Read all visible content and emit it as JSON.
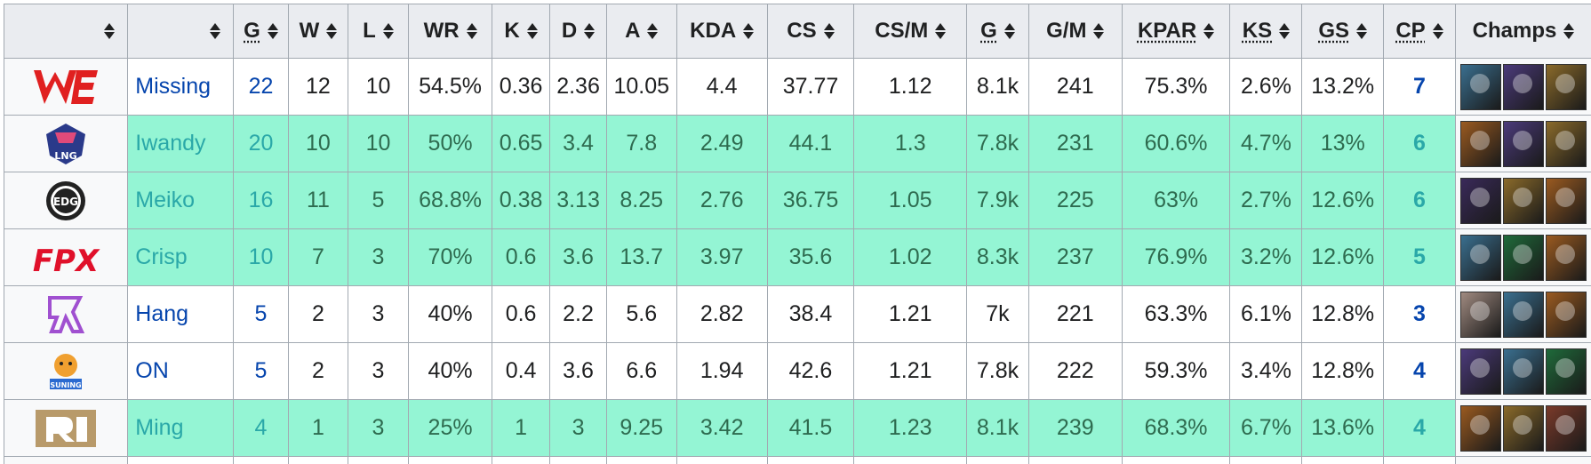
{
  "headers": [
    {
      "label": "",
      "abbr": false
    },
    {
      "label": "",
      "abbr": false
    },
    {
      "label": "G",
      "abbr": true
    },
    {
      "label": "W",
      "abbr": false
    },
    {
      "label": "L",
      "abbr": false
    },
    {
      "label": "WR",
      "abbr": false
    },
    {
      "label": "K",
      "abbr": false
    },
    {
      "label": "D",
      "abbr": false
    },
    {
      "label": "A",
      "abbr": false
    },
    {
      "label": "KDA",
      "abbr": false
    },
    {
      "label": "CS",
      "abbr": false
    },
    {
      "label": "CS/M",
      "abbr": false
    },
    {
      "label": "G",
      "abbr": true
    },
    {
      "label": "G/M",
      "abbr": false
    },
    {
      "label": "KPAR",
      "abbr": true
    },
    {
      "label": "KS",
      "abbr": true
    },
    {
      "label": "GS",
      "abbr": true
    },
    {
      "label": "CP",
      "abbr": true
    },
    {
      "label": "Champs",
      "abbr": false
    }
  ],
  "rows": [
    {
      "team_logo": "we-logo",
      "player": "Missing",
      "highlight": false,
      "games": "22",
      "w": "12",
      "l": "10",
      "wr": "54.5%",
      "k": "0.36",
      "d": "2.36",
      "a": "10.05",
      "kda": "4.4",
      "cs": "37.77",
      "csm": "1.12",
      "gold": "8.1k",
      "gm": "241",
      "kpar": "75.3%",
      "ks": "2.6%",
      "gs": "13.2%",
      "cp": "7",
      "champs": [
        {
          "icon": "champ-icon-1",
          "color": "#3a6f8f"
        },
        {
          "icon": "champ-icon-2",
          "color": "#4b3a7a"
        },
        {
          "icon": "champ-icon-3",
          "color": "#8a6a2a"
        }
      ]
    },
    {
      "team_logo": "lng-logo",
      "player": "Iwandy",
      "highlight": true,
      "games": "20",
      "w": "10",
      "l": "10",
      "wr": "50%",
      "k": "0.65",
      "d": "3.4",
      "a": "7.8",
      "kda": "2.49",
      "cs": "44.1",
      "csm": "1.3",
      "gold": "7.8k",
      "gm": "231",
      "kpar": "60.6%",
      "ks": "4.7%",
      "gs": "13%",
      "cp": "6",
      "champs": [
        {
          "icon": "champ-icon-4",
          "color": "#9a5a20"
        },
        {
          "icon": "champ-icon-2",
          "color": "#4b3a7a"
        },
        {
          "icon": "champ-icon-3",
          "color": "#8a6a2a"
        }
      ]
    },
    {
      "team_logo": "edg-logo",
      "player": "Meiko",
      "highlight": true,
      "games": "16",
      "w": "11",
      "l": "5",
      "wr": "68.8%",
      "k": "0.38",
      "d": "3.13",
      "a": "8.25",
      "kda": "2.76",
      "cs": "36.75",
      "csm": "1.05",
      "gold": "7.9k",
      "gm": "225",
      "kpar": "63%",
      "ks": "2.7%",
      "gs": "12.6%",
      "cp": "6",
      "champs": [
        {
          "icon": "champ-icon-5",
          "color": "#3a2a5a"
        },
        {
          "icon": "champ-icon-3",
          "color": "#8a6a2a"
        },
        {
          "icon": "champ-icon-4",
          "color": "#9a5a20"
        }
      ]
    },
    {
      "team_logo": "fpx-logo",
      "player": "Crisp",
      "highlight": true,
      "games": "10",
      "w": "7",
      "l": "3",
      "wr": "70%",
      "k": "0.6",
      "d": "3.6",
      "a": "13.7",
      "kda": "3.97",
      "cs": "35.6",
      "csm": "1.02",
      "gold": "8.3k",
      "gm": "237",
      "kpar": "76.9%",
      "ks": "3.2%",
      "gs": "12.6%",
      "cp": "5",
      "champs": [
        {
          "icon": "champ-icon-1",
          "color": "#3a6f8f"
        },
        {
          "icon": "champ-icon-6",
          "color": "#1f6a3a"
        },
        {
          "icon": "champ-icon-4",
          "color": "#9a5a20"
        }
      ]
    },
    {
      "team_logo": "rng-purple-logo",
      "player": "Hang",
      "highlight": false,
      "games": "5",
      "w": "2",
      "l": "3",
      "wr": "40%",
      "k": "0.6",
      "d": "2.2",
      "a": "5.6",
      "kda": "2.82",
      "cs": "38.4",
      "csm": "1.21",
      "gold": "7k",
      "gm": "221",
      "kpar": "63.3%",
      "ks": "6.1%",
      "gs": "12.8%",
      "cp": "3",
      "champs": [
        {
          "icon": "champ-icon-7",
          "color": "#a08a80"
        },
        {
          "icon": "champ-icon-1",
          "color": "#3a6f8f"
        },
        {
          "icon": "champ-icon-4",
          "color": "#9a5a20"
        }
      ]
    },
    {
      "team_logo": "suning-logo",
      "player": "ON",
      "highlight": false,
      "games": "5",
      "w": "2",
      "l": "3",
      "wr": "40%",
      "k": "0.4",
      "d": "3.6",
      "a": "6.6",
      "kda": "1.94",
      "cs": "42.6",
      "csm": "1.21",
      "gold": "7.8k",
      "gm": "222",
      "kpar": "59.3%",
      "ks": "3.4%",
      "gs": "12.8%",
      "cp": "4",
      "champs": [
        {
          "icon": "champ-icon-2",
          "color": "#4b3a7a"
        },
        {
          "icon": "champ-icon-1",
          "color": "#3a6f8f"
        },
        {
          "icon": "champ-icon-6",
          "color": "#1f6a3a"
        }
      ]
    },
    {
      "team_logo": "rng-logo",
      "player": "Ming",
      "highlight": true,
      "games": "4",
      "w": "1",
      "l": "3",
      "wr": "25%",
      "k": "1",
      "d": "3",
      "a": "9.25",
      "kda": "3.42",
      "cs": "41.5",
      "csm": "1.23",
      "gold": "8.1k",
      "gm": "239",
      "kpar": "68.3%",
      "ks": "6.7%",
      "gs": "13.6%",
      "cp": "4",
      "champs": [
        {
          "icon": "champ-icon-4",
          "color": "#9a5a20"
        },
        {
          "icon": "champ-icon-3",
          "color": "#8a6a2a"
        },
        {
          "icon": "champ-icon-8",
          "color": "#7a3a2a"
        }
      ]
    }
  ]
}
